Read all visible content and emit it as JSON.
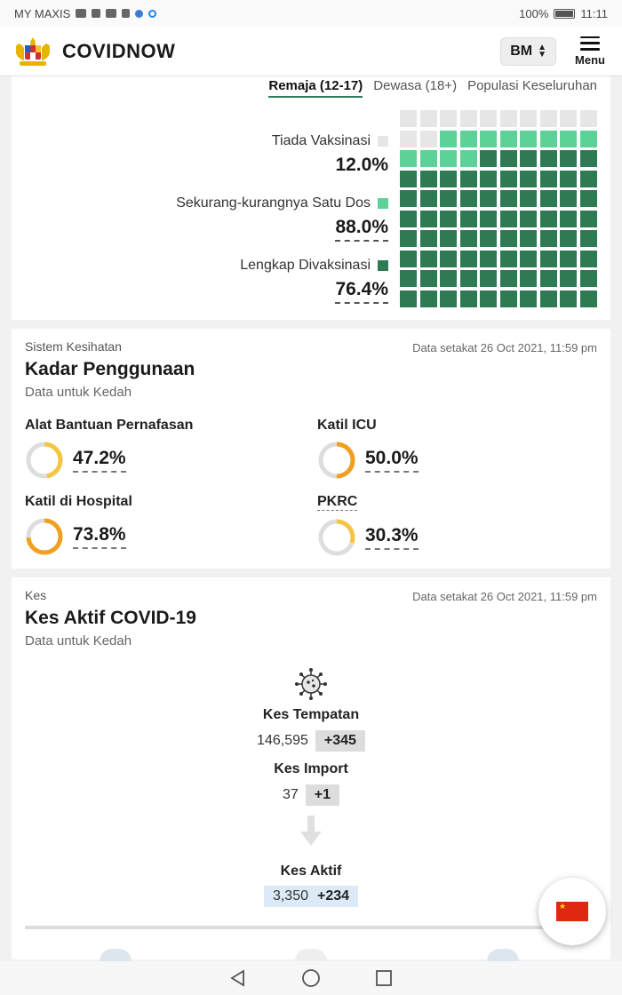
{
  "status_bar": {
    "carrier": "MY MAXIS",
    "battery": "100%",
    "time": "11:11"
  },
  "app": {
    "brand": "COVIDNOW",
    "lang": "BM",
    "menu_label": "Menu"
  },
  "vaccination": {
    "tabs": [
      {
        "label": "Remaja (12-17)",
        "active": true
      },
      {
        "label": "Dewasa (18+)",
        "active": false
      },
      {
        "label": "Populasi Keseluruhan",
        "active": false
      }
    ],
    "legend": [
      {
        "label": "Tiada Vaksinasi",
        "value": "12.0%",
        "color": "#e6e6e6"
      },
      {
        "label": "Sekurang-kurangnya Satu Dos",
        "value": "88.0%",
        "color": "#5ed199"
      },
      {
        "label": "Lengkap Divaksinasi",
        "value": "76.4%",
        "color": "#2d7a53"
      }
    ],
    "levels": {
      "none": 0.12,
      "partial": 0.88,
      "full": 0.764
    }
  },
  "utilisation": {
    "section": "Sistem Kesihatan",
    "date": "Data setakat 26 Oct 2021, 11:59 pm",
    "title": "Kadar Penggunaan",
    "subtitle": "Data untuk Kedah",
    "items": [
      {
        "label": "Alat Bantuan Pernafasan",
        "value": "47.2%",
        "fraction": 0.472,
        "color": "#f5c542"
      },
      {
        "label": "Katil ICU",
        "value": "50.0%",
        "fraction": 0.5,
        "color": "#f0a020"
      },
      {
        "label": "Katil di Hospital",
        "value": "73.8%",
        "fraction": 0.738,
        "color": "#f0a020"
      },
      {
        "label": "PKRC",
        "value": "30.3%",
        "fraction": 0.303,
        "color": "#f5c542"
      }
    ]
  },
  "cases": {
    "section": "Kes",
    "date": "Data setakat 26 Oct 2021, 11:59 pm",
    "title": "Kes Aktif COVID-19",
    "subtitle": "Data untuk Kedah",
    "local_label": "Kes Tempatan",
    "local_value": "146,595",
    "local_delta": "+345",
    "import_label": "Kes Import",
    "import_value": "37",
    "import_delta": "+1",
    "active_label": "Kes Aktif",
    "active_value": "3,350",
    "active_delta": "+234"
  }
}
